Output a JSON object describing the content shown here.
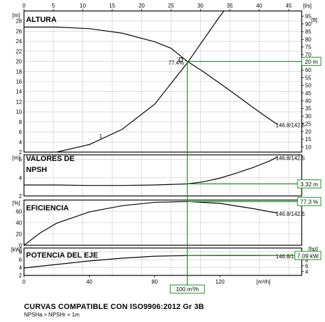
{
  "footer": {
    "title": "CURVAS COMPATIBLE CON ISO9906:2012 Gr 3B",
    "note": "NPSHa > NPSHr + 1m"
  },
  "chart_data": [
    {
      "panel": "head",
      "type": "line",
      "title": "ALTURA",
      "ylabel": "[m]",
      "y2label": "[ft]",
      "x_top_label": "[l/s]",
      "x_top_ticks": [
        0,
        5,
        10,
        15,
        20,
        25,
        30,
        35,
        40,
        45
      ],
      "xlim": [
        0,
        170
      ],
      "ylim": [
        2,
        30
      ],
      "yticks": [
        2,
        4,
        6,
        8,
        10,
        12,
        14,
        16,
        18,
        20,
        22,
        24,
        26,
        28
      ],
      "y2ticks": [
        10,
        15,
        20,
        25,
        30,
        35,
        40,
        45,
        50,
        55,
        60,
        65,
        70,
        75,
        80,
        85,
        90,
        95
      ],
      "grid": true,
      "series": [
        {
          "name": "146.8/142.5",
          "x": [
            0,
            20,
            40,
            60,
            80,
            90,
            100,
            110,
            120,
            130,
            140,
            150,
            155
          ],
          "y": [
            26.8,
            26.8,
            26.5,
            25.6,
            23.9,
            22.6,
            20.0,
            17.9,
            15.6,
            13.3,
            10.9,
            8.6,
            7.5
          ]
        },
        {
          "name": "1",
          "x": [
            20,
            40,
            60,
            80,
            100,
            120,
            127
          ],
          "y": [
            2,
            3.5,
            6.5,
            11.5,
            19.7,
            29.0,
            32.0
          ]
        }
      ],
      "annotations": {
        "efficiency_label": "77.4%",
        "duty_value": "20 m"
      }
    },
    {
      "panel": "npsh",
      "type": "line",
      "title": "VALORES DE NPSH",
      "ylabel": "[m]",
      "ylim": [
        2,
        6.5
      ],
      "yticks": [
        2,
        4,
        6
      ],
      "grid": true,
      "series": [
        {
          "name": "146.8/142.5",
          "x": [
            0,
            20,
            40,
            60,
            80,
            100,
            110,
            120,
            130,
            140,
            150,
            155
          ],
          "y": [
            3.2,
            3.2,
            3.15,
            3.15,
            3.2,
            3.32,
            3.55,
            3.95,
            4.5,
            5.1,
            5.8,
            6.25
          ]
        }
      ],
      "annotations": {
        "duty_value": "3.32 m"
      }
    },
    {
      "panel": "efficiency",
      "type": "line",
      "title": "EFICIENCIA",
      "ylabel": "[%]",
      "ylim": [
        0,
        80
      ],
      "yticks": [
        0,
        20,
        40,
        60
      ],
      "grid": true,
      "series": [
        {
          "name": "146.8/142.5",
          "x": [
            0,
            10,
            20,
            40,
            60,
            80,
            100,
            120,
            140,
            155
          ],
          "y": [
            0,
            22,
            39,
            59,
            70,
            76,
            77.3,
            74,
            65,
            57
          ]
        }
      ],
      "annotations": {
        "duty_value": "77.3 %"
      }
    },
    {
      "panel": "power",
      "type": "line",
      "title": "POTENCIA DEL EJE",
      "ylabel": "[kW]",
      "y2label": "[hp]",
      "xlabel": "[m³/h]",
      "xlim": [
        0,
        170
      ],
      "xticks": [
        0,
        40,
        80,
        120
      ],
      "ylim": [
        2,
        9
      ],
      "yticks": [
        2,
        4,
        6,
        8
      ],
      "y2ticks": [
        2,
        4,
        6,
        8,
        10
      ],
      "grid": true,
      "series": [
        {
          "name": "146.8/142.5",
          "x": [
            0,
            20,
            40,
            60,
            80,
            100,
            120,
            140,
            155
          ],
          "y": [
            3.9,
            4.8,
            5.7,
            6.4,
            6.9,
            7.09,
            7.15,
            7.15,
            7.1
          ]
        }
      ],
      "annotations": {
        "duty_value": "7.09 kW",
        "flow_value": "100 m³/h"
      }
    }
  ]
}
